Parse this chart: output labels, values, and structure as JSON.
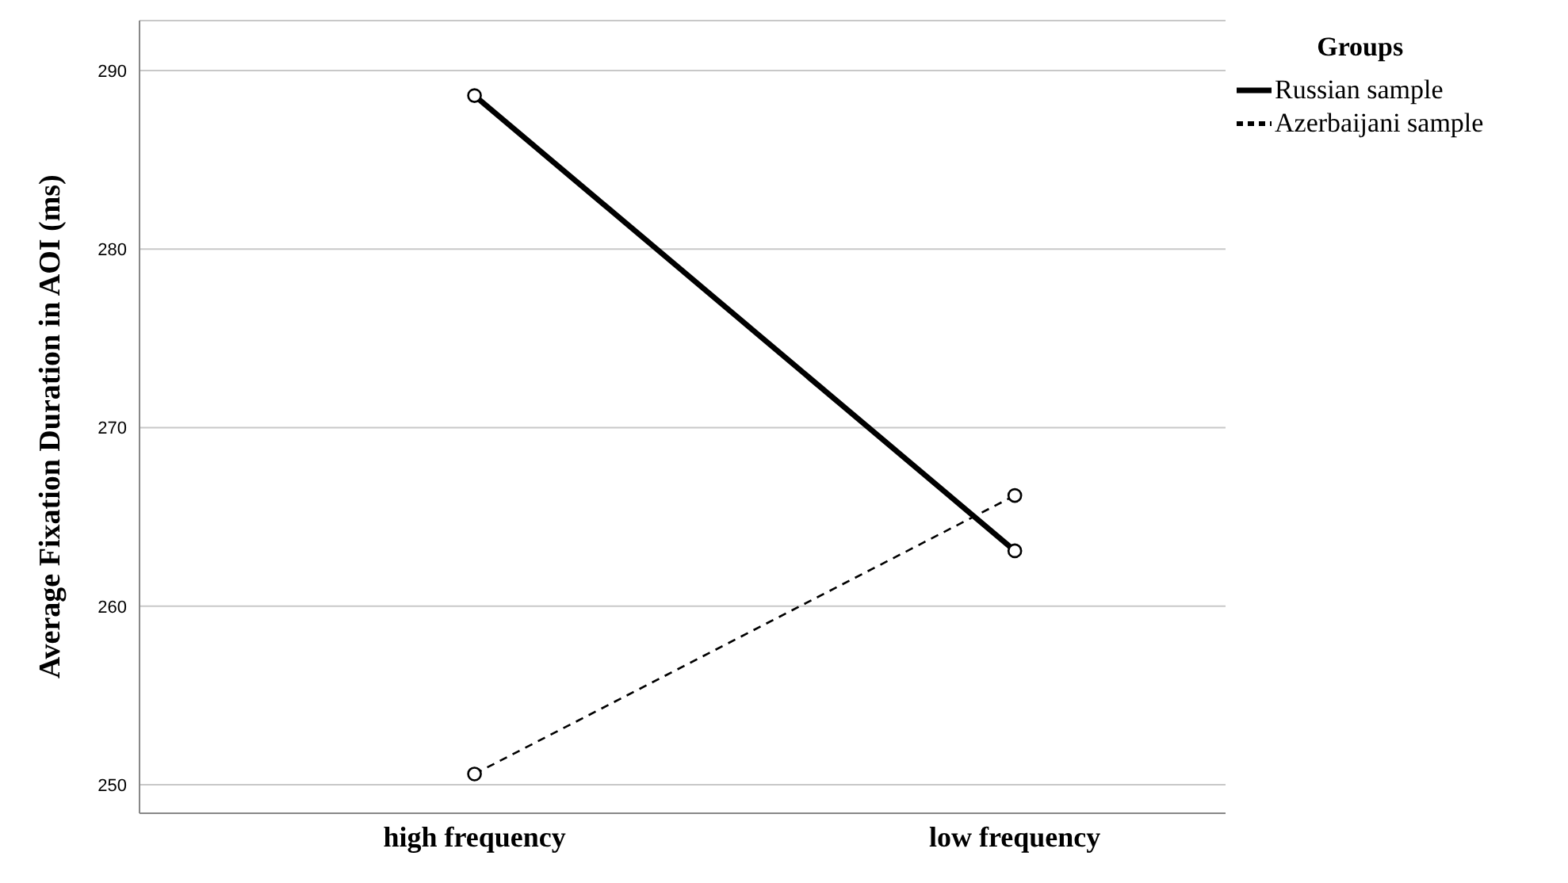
{
  "chart_data": {
    "type": "line",
    "ylabel": "Average  Fixation Duration in AOI (ms)",
    "legend_title": "Groups",
    "categories": [
      "high frequency",
      "low frequency"
    ],
    "series": [
      {
        "name": "Russian sample",
        "color": "#000000",
        "values": [
          288.6,
          263.1
        ],
        "line_style": "solid"
      },
      {
        "name": "Azerbaijani sample",
        "color": "#000000",
        "values": [
          250.6,
          266.2
        ],
        "line_style": "dashed"
      }
    ],
    "ylim": [
      248.4,
      292.8
    ],
    "yticks": [
      250,
      260,
      270,
      280,
      290
    ],
    "grid": "y",
    "legend": "right",
    "marker": "circle"
  }
}
